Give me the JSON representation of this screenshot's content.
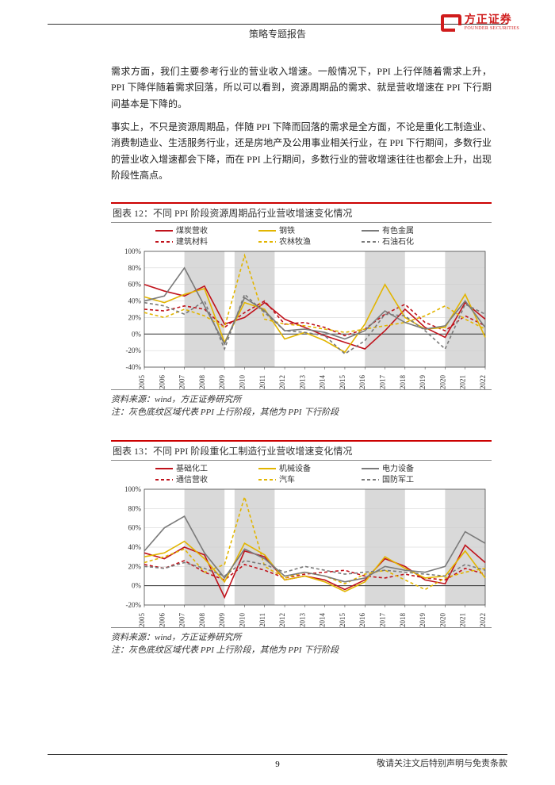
{
  "header": {
    "title": "策略专题报告",
    "logo_cn": "方正证券",
    "logo_en": "FOUNDER SECURITIES"
  },
  "paragraphs": {
    "p1": "需求方面，我们主要参考行业的营业收入增速。一般情况下，PPI 上行伴随着需求上升，PPI 下降伴随着需求回落，所以可以看到，资源周期品的需求、就是营收增速在 PPI 下行期间基本是下降的。",
    "p2": "事实上，不只是资源周期品，伴随 PPI 下降而回落的需求是全方面，不论是重化工制造业、消费制造业、生活服务行业，还是房地产及公用事业相关行业，在 PPI 下行期间，多数行业的营业收入增速都会下降，而在 PPI 上行期间，多数行业的营收增速往往也都会上升，出现阶段性高点。"
  },
  "chart12": {
    "type": "line",
    "title": "图表 12：不同 PPI 阶段资源周期品行业营收增速变化情况",
    "source": "资料来源：wind，方正证券研究所",
    "note": "注：灰色底纹区域代表 PPI 上行阶段，其他为 PPI 下行阶段",
    "x_years": [
      "2005",
      "2006",
      "2007",
      "2008",
      "2009",
      "2010",
      "2011",
      "2012",
      "2013",
      "2014",
      "2015",
      "2016",
      "2017",
      "2018",
      "2019",
      "2020",
      "2021",
      "2022"
    ],
    "ylim": [
      -40,
      100
    ],
    "ytick_step": 20,
    "yticks": [
      "100%",
      "80%",
      "60%",
      "40%",
      "20%",
      "0%",
      "-20%",
      "-40%"
    ],
    "background_color": "#ffffff",
    "grid_color": "#cccccc",
    "shade_color": "#d9d9d9",
    "axis_color": "#333333",
    "label_fontsize": 9,
    "line_width": 1.6,
    "legend": [
      {
        "label": "煤炭营收",
        "color": "#c0121b",
        "dash": "solid"
      },
      {
        "label": "建筑材料",
        "color": "#c0121b",
        "dash": "4,3"
      },
      {
        "label": "钢铁",
        "color": "#e2b500",
        "dash": "solid"
      },
      {
        "label": "农林牧渔",
        "color": "#e2b500",
        "dash": "4,3"
      },
      {
        "label": "有色金属",
        "color": "#7a7a7a",
        "dash": "solid"
      },
      {
        "label": "石油石化",
        "color": "#7a7a7a",
        "dash": "4,3"
      }
    ],
    "shaded_ranges": [
      [
        2,
        4
      ],
      [
        4.5,
        6.5
      ],
      [
        11,
        13
      ],
      [
        15,
        17
      ]
    ],
    "series": {
      "coal": {
        "color": "#c0121b",
        "dash": "none",
        "values": [
          60,
          52,
          46,
          58,
          12,
          20,
          38,
          18,
          8,
          -2,
          -10,
          -18,
          4,
          30,
          8,
          -4,
          38,
          18
        ]
      },
      "build": {
        "color": "#c0121b",
        "dash": "4,3",
        "values": [
          30,
          28,
          34,
          30,
          8,
          26,
          40,
          12,
          14,
          8,
          -2,
          6,
          24,
          36,
          14,
          4,
          22,
          10
        ]
      },
      "steel": {
        "color": "#e2b500",
        "dash": "none",
        "values": [
          45,
          38,
          48,
          55,
          -10,
          38,
          30,
          -6,
          2,
          -8,
          -22,
          12,
          60,
          20,
          6,
          8,
          48,
          -4
        ]
      },
      "agri": {
        "color": "#e2b500",
        "dash": "4,3",
        "values": [
          26,
          20,
          30,
          22,
          8,
          95,
          18,
          12,
          10,
          6,
          2,
          6,
          10,
          14,
          22,
          34,
          18,
          6
        ]
      },
      "nonferrous": {
        "color": "#7a7a7a",
        "dash": "none",
        "values": [
          40,
          46,
          80,
          34,
          -12,
          44,
          28,
          4,
          6,
          2,
          -6,
          4,
          28,
          14,
          6,
          10,
          40,
          8
        ]
      },
      "oil": {
        "color": "#7a7a7a",
        "dash": "4,3",
        "values": [
          38,
          34,
          24,
          40,
          -18,
          48,
          26,
          4,
          2,
          -2,
          -24,
          -8,
          24,
          22,
          4,
          -18,
          36,
          24
        ]
      }
    }
  },
  "chart13": {
    "type": "line",
    "title": "图表 13：不同 PPI 阶段重化工制造行业营收增速变化情况",
    "source": "资料来源：wind，方正证券研究所",
    "note": "注：灰色底纹区域代表 PPI 上行阶段，其他为 PPI 下行阶段",
    "x_years": [
      "2005",
      "2006",
      "2007",
      "2008",
      "2009",
      "2010",
      "2011",
      "2012",
      "2013",
      "2014",
      "2015",
      "2016",
      "2017",
      "2018",
      "2019",
      "2020",
      "2021",
      "2022"
    ],
    "ylim": [
      -20,
      100
    ],
    "ytick_step": 20,
    "yticks": [
      "100%",
      "80%",
      "60%",
      "40%",
      "20%",
      "0%",
      "-20%"
    ],
    "background_color": "#ffffff",
    "grid_color": "#cccccc",
    "shade_color": "#d9d9d9",
    "axis_color": "#333333",
    "label_fontsize": 9,
    "line_width": 1.6,
    "legend": [
      {
        "label": "基础化工",
        "color": "#c0121b",
        "dash": "solid"
      },
      {
        "label": "通信营收",
        "color": "#c0121b",
        "dash": "4,3"
      },
      {
        "label": "机械设备",
        "color": "#e2b500",
        "dash": "solid"
      },
      {
        "label": "汽车",
        "color": "#e2b500",
        "dash": "4,3"
      },
      {
        "label": "电力设备",
        "color": "#7a7a7a",
        "dash": "solid"
      },
      {
        "label": "国防军工",
        "color": "#7a7a7a",
        "dash": "4,3"
      }
    ],
    "shaded_ranges": [
      [
        2,
        4
      ],
      [
        4.5,
        6.5
      ],
      [
        11,
        13
      ],
      [
        15,
        17
      ]
    ],
    "series": {
      "chem": {
        "color": "#c0121b",
        "dash": "none",
        "values": [
          34,
          28,
          40,
          32,
          -12,
          36,
          30,
          6,
          10,
          6,
          -4,
          6,
          28,
          20,
          6,
          2,
          42,
          24
        ]
      },
      "comm": {
        "color": "#c0121b",
        "dash": "4,3",
        "values": [
          22,
          18,
          26,
          14,
          6,
          22,
          16,
          8,
          12,
          14,
          16,
          10,
          8,
          12,
          8,
          6,
          18,
          12
        ]
      },
      "mech": {
        "color": "#e2b500",
        "dash": "none",
        "values": [
          30,
          34,
          46,
          28,
          4,
          44,
          32,
          6,
          10,
          4,
          -6,
          4,
          30,
          18,
          8,
          10,
          36,
          8
        ]
      },
      "auto": {
        "color": "#e2b500",
        "dash": "4,3",
        "values": [
          24,
          30,
          38,
          14,
          22,
          92,
          20,
          8,
          14,
          10,
          2,
          12,
          16,
          6,
          -4,
          8,
          14,
          18
        ]
      },
      "power": {
        "color": "#7a7a7a",
        "dash": "none",
        "values": [
          36,
          60,
          72,
          34,
          8,
          38,
          28,
          10,
          14,
          10,
          4,
          8,
          20,
          16,
          14,
          20,
          56,
          44
        ]
      },
      "defense": {
        "color": "#7a7a7a",
        "dash": "4,3",
        "values": [
          20,
          18,
          24,
          18,
          10,
          26,
          22,
          14,
          20,
          16,
          12,
          14,
          16,
          14,
          12,
          10,
          22,
          16
        ]
      }
    }
  },
  "footer": {
    "page": "9",
    "disclaimer": "敬请关注文后特别声明与免责条款"
  }
}
